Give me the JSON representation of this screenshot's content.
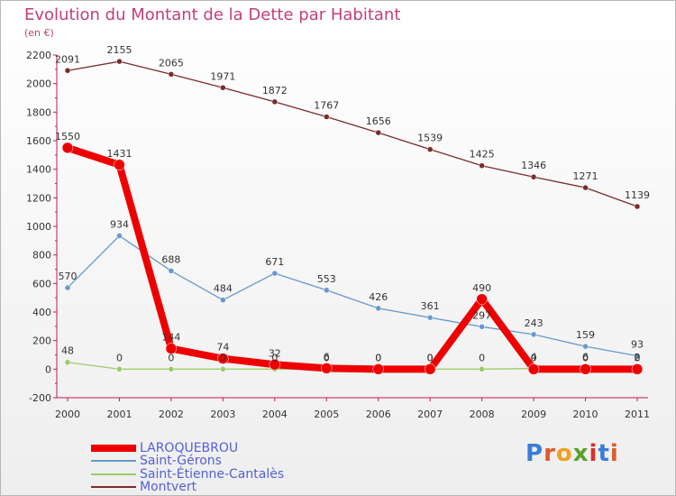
{
  "title": "Evolution du Montant de la Dette par Habitant",
  "subtitle": "(en €)",
  "logo_text": "Proxiti",
  "chart_data": {
    "type": "line",
    "title": "Evolution du Montant de la Dette par Habitant",
    "ylabel": "(en €)",
    "xlabel": "",
    "x": [
      "2000",
      "2001",
      "2002",
      "2003",
      "2004",
      "2005",
      "2006",
      "2007",
      "2008",
      "2009",
      "2010",
      "2011"
    ],
    "ylim": [
      -200,
      2200
    ],
    "yticks": [
      -200,
      0,
      200,
      400,
      600,
      800,
      1000,
      1200,
      1400,
      1600,
      1800,
      2000,
      2200
    ],
    "grid": false,
    "legend_position": "bottom-left",
    "series": [
      {
        "name": "LAROQUEBROU",
        "color": "#ee0000",
        "values": [
          1550,
          1431,
          144,
          74,
          32,
          6,
          0,
          0,
          490,
          0,
          0,
          0
        ],
        "labels": [
          "1550",
          "1431",
          "144",
          "74",
          "32",
          "6",
          "0",
          "0",
          "490",
          "0",
          "0",
          "0"
        ]
      },
      {
        "name": "Saint-Gérons",
        "color": "#6699cc",
        "values": [
          570,
          934,
          688,
          484,
          671,
          553,
          426,
          361,
          297,
          243,
          159,
          93
        ],
        "labels": [
          "570",
          "934",
          "688",
          "484",
          "671",
          "553",
          "426",
          "361",
          "297",
          "243",
          "159",
          "93"
        ]
      },
      {
        "name": "Saint-Étienne-Cantalès",
        "color": "#99cc66",
        "values": [
          48,
          0,
          0,
          0,
          0,
          0,
          0,
          0,
          0,
          4,
          6,
          2
        ],
        "labels": [
          "48",
          "0",
          "0",
          "0",
          "0",
          "0",
          "0",
          "0",
          "0",
          "4",
          "6",
          "2"
        ]
      },
      {
        "name": "Montvert",
        "color": "#7a2c2c",
        "values": [
          2091,
          2155,
          2065,
          1971,
          1872,
          1767,
          1656,
          1539,
          1425,
          1346,
          1271,
          1139
        ],
        "labels": [
          "2091",
          "2155",
          "2065",
          "1971",
          "1872",
          "1767",
          "1656",
          "1539",
          "1425",
          "1346",
          "1271",
          "1139"
        ]
      }
    ]
  },
  "legend": [
    {
      "label": "LAROQUEBROU",
      "color": "#ee0000"
    },
    {
      "label": "Saint-Gérons",
      "color": "#6699cc"
    },
    {
      "label": "Saint-Étienne-Cantalès",
      "color": "#99cc66"
    },
    {
      "label": "Montvert",
      "color": "#7a2c2c"
    }
  ],
  "logo_colors": [
    "#3b7dd8",
    "#e05a2a",
    "#f0a020",
    "#5aa02c",
    "#d8302c",
    "#3b7dd8",
    "#e05a2a"
  ]
}
